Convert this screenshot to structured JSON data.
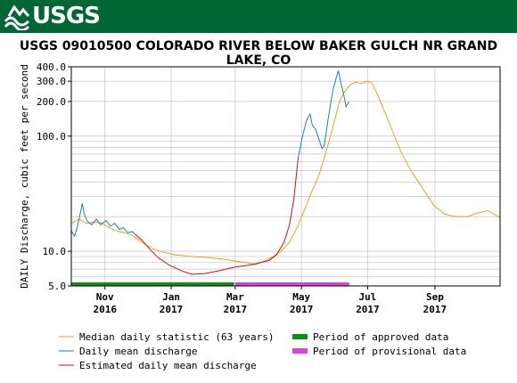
{
  "header": {
    "agency": "USGS",
    "title": "USGS 09010500 COLORADO RIVER BELOW BAKER GULCH NR GRAND LAKE, CO"
  },
  "colors": {
    "banner": "#006633",
    "median": "#e8a21a",
    "daily": "#1f7fae",
    "estimated": "#d01010",
    "approved": "#109010",
    "provisional": "#e040e0",
    "grid": "#b8b8b8"
  },
  "chart_data": {
    "type": "line",
    "title": "USGS 09010500 COLORADO RIVER BELOW BAKER GULCH NR GRAND LAKE, CO",
    "ylabel": "DAILY Discharge, cubic feet per second",
    "yscale": "log",
    "ylim": [
      5.0,
      400.0
    ],
    "xlim": [
      "2016-10-01",
      "2017-10-31"
    ],
    "grid": true,
    "y_ticks": [
      "5.0",
      "10.0",
      "100.0",
      "200.0",
      "300.0",
      "400.0"
    ],
    "x_ticks": [
      {
        "month": "Nov",
        "year": "2016",
        "date": "2016-11-01"
      },
      {
        "month": "Jan",
        "year": "2017",
        "date": "2017-01-01"
      },
      {
        "month": "Mar",
        "year": "2017",
        "date": "2017-03-01"
      },
      {
        "month": "May",
        "year": "2017",
        "date": "2017-05-01"
      },
      {
        "month": "Jul",
        "year": "2017",
        "date": "2017-07-01"
      },
      {
        "month": "Sep",
        "year": "2017",
        "date": "2017-09-01"
      }
    ],
    "series": [
      {
        "name": "Median daily statistic (63 years)",
        "color": "#e8a21a",
        "points": [
          [
            "2016-10-01",
            17.5
          ],
          [
            "2016-10-08",
            19
          ],
          [
            "2016-10-15",
            17.5
          ],
          [
            "2016-10-22",
            18
          ],
          [
            "2016-10-29",
            17.5
          ],
          [
            "2016-11-05",
            16
          ],
          [
            "2016-11-12",
            15
          ],
          [
            "2016-11-19",
            14.5
          ],
          [
            "2016-11-26",
            13.8
          ],
          [
            "2016-12-05",
            12
          ],
          [
            "2016-12-15",
            10.5
          ],
          [
            "2016-12-25",
            9.8
          ],
          [
            "2017-01-05",
            9.3
          ],
          [
            "2017-01-20",
            9.0
          ],
          [
            "2017-02-05",
            8.8
          ],
          [
            "2017-02-20",
            8.5
          ],
          [
            "2017-03-01",
            8.2
          ],
          [
            "2017-03-10",
            8.0
          ],
          [
            "2017-03-20",
            7.7
          ],
          [
            "2017-03-28",
            8.2
          ],
          [
            "2017-04-05",
            9
          ],
          [
            "2017-04-12",
            10
          ],
          [
            "2017-04-20",
            12
          ],
          [
            "2017-04-27",
            16
          ],
          [
            "2017-05-03",
            22
          ],
          [
            "2017-05-10",
            32
          ],
          [
            "2017-05-17",
            45
          ],
          [
            "2017-05-24",
            75
          ],
          [
            "2017-05-31",
            130
          ],
          [
            "2017-06-05",
            200
          ],
          [
            "2017-06-10",
            245
          ],
          [
            "2017-06-15",
            280
          ],
          [
            "2017-06-20",
            295
          ],
          [
            "2017-06-25",
            285
          ],
          [
            "2017-06-30",
            300
          ],
          [
            "2017-07-05",
            290
          ],
          [
            "2017-07-10",
            230
          ],
          [
            "2017-07-17",
            160
          ],
          [
            "2017-07-24",
            110
          ],
          [
            "2017-08-01",
            72
          ],
          [
            "2017-08-10",
            50
          ],
          [
            "2017-08-20",
            36
          ],
          [
            "2017-08-31",
            25
          ],
          [
            "2017-09-10",
            21
          ],
          [
            "2017-09-20",
            20
          ],
          [
            "2017-10-01",
            20
          ],
          [
            "2017-10-10",
            21.5
          ],
          [
            "2017-10-20",
            22.5
          ],
          [
            "2017-10-31",
            19.5
          ]
        ]
      },
      {
        "name": "Daily mean discharge",
        "color": "#1f7fae",
        "points": [
          [
            "2016-10-01",
            15
          ],
          [
            "2016-10-04",
            13.5
          ],
          [
            "2016-10-07",
            17
          ],
          [
            "2016-10-10",
            23
          ],
          [
            "2016-10-11",
            26
          ],
          [
            "2016-10-13",
            21
          ],
          [
            "2016-10-16",
            18
          ],
          [
            "2016-10-20",
            17
          ],
          [
            "2016-10-24",
            19
          ],
          [
            "2016-10-28",
            17
          ],
          [
            "2016-11-02",
            18.5
          ],
          [
            "2016-11-06",
            16.5
          ],
          [
            "2016-11-10",
            17.5
          ],
          [
            "2016-11-14",
            15.5
          ],
          [
            "2016-11-18",
            16
          ],
          [
            "2016-11-22",
            14.5
          ],
          [
            "2016-11-26",
            14.8
          ],
          [
            "2016-11-29",
            14
          ]
        ]
      },
      {
        "name": "Daily mean discharge (spring)",
        "color": "#1f7fae",
        "points": [
          [
            "2017-04-28",
            65
          ],
          [
            "2017-05-02",
            100
          ],
          [
            "2017-05-06",
            140
          ],
          [
            "2017-05-09",
            155
          ],
          [
            "2017-05-11",
            125
          ],
          [
            "2017-05-14",
            115
          ],
          [
            "2017-05-17",
            95
          ],
          [
            "2017-05-20",
            78
          ],
          [
            "2017-05-22",
            82
          ],
          [
            "2017-05-26",
            150
          ],
          [
            "2017-05-30",
            250
          ],
          [
            "2017-06-02",
            320
          ],
          [
            "2017-06-04",
            370
          ],
          [
            "2017-06-06",
            300
          ],
          [
            "2017-06-09",
            230
          ],
          [
            "2017-06-11",
            180
          ],
          [
            "2017-06-14",
            200
          ]
        ]
      },
      {
        "name": "Estimated daily mean discharge",
        "color": "#d01010",
        "points": [
          [
            "2016-11-29",
            14
          ],
          [
            "2016-12-05",
            12.5
          ],
          [
            "2016-12-12",
            10.5
          ],
          [
            "2016-12-20",
            8.8
          ],
          [
            "2016-12-30",
            7.6
          ],
          [
            "2017-01-10",
            6.8
          ],
          [
            "2017-01-20",
            6.3
          ],
          [
            "2017-02-01",
            6.4
          ],
          [
            "2017-02-15",
            6.8
          ],
          [
            "2017-03-01",
            7.3
          ],
          [
            "2017-03-15",
            7.6
          ],
          [
            "2017-03-25",
            8.0
          ],
          [
            "2017-04-01",
            8.3
          ],
          [
            "2017-04-08",
            9.3
          ],
          [
            "2017-04-15",
            12
          ],
          [
            "2017-04-20",
            17
          ],
          [
            "2017-04-24",
            28
          ],
          [
            "2017-04-28",
            65
          ]
        ]
      }
    ],
    "periods": [
      {
        "name": "Period of approved data",
        "color": "#109010",
        "start": "2016-10-01",
        "end": "2017-02-28"
      },
      {
        "name": "Period of provisional data",
        "color": "#e040e0",
        "start": "2017-03-01",
        "end": "2017-06-14"
      }
    ],
    "legend": {
      "placement": "bottom",
      "items": [
        {
          "label": "Median daily statistic (63 years)",
          "color": "#e8a21a",
          "kind": "line"
        },
        {
          "label": "Daily mean discharge",
          "color": "#1f7fae",
          "kind": "line"
        },
        {
          "label": "Estimated daily mean discharge",
          "color": "#d01010",
          "kind": "line"
        },
        {
          "label": "Period of approved data",
          "color": "#109010",
          "kind": "bar"
        },
        {
          "label": "Period of provisional data",
          "color": "#e040e0",
          "kind": "bar"
        }
      ]
    }
  }
}
